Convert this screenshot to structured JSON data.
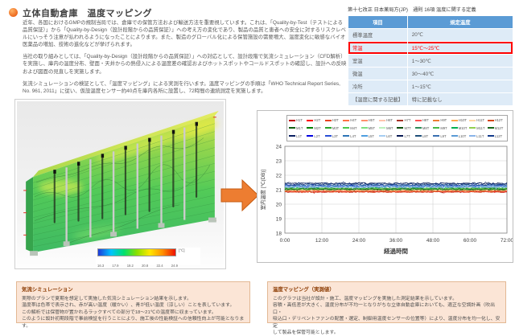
{
  "header": {
    "title": "立体自動倉庫　温度マッピング",
    "bullet_color": "#ED7D31"
  },
  "intro": {
    "p1": "近年、各国におけるGMPの規制当局では、倉庫での保管方法および輸送方法を重要視しています。これは、「Quality-by-Test（テストによる品質保証）」から「Quality-by-Design（設計段階からの品質保証）」への考え方の変化であり、製品の品質と患者への安全に対するリスクレベルにいっそう注意が払われるようになったことによります。また、製造のグローバル化による保管施設の需要増大、温度変化に敏感なバイオ医薬品の増加、技術の進化などが挙げられます。",
    "p2": "当社の取り組みとしては、「Quality-by-Design（設計段階からの品質保証）」への対応として、設計段階で気流シミュレーション（CFD解析）を実施し、庫内の温度分布、壁面・天井からの熱侵入による温度差の確認およびホットスポットやコールドスポットの確認し、設計への反映および図面の見直しを実施します。",
    "p3": "気流シミュレーションの検証として、「温度マッピング」による実測を行います。温度マッピングの手順は「WHO Technical Report Series, No. 961, 2011」に従い、仮設温度センサー約40点を庫内各所に設置し、72時間の連続測定を実施します。"
  },
  "jp_table": {
    "title": "第十七改正 日本薬局方(JP)　通則 16項 温度に関する定義",
    "columns": [
      "項目",
      "規定温度"
    ],
    "rows": [
      {
        "label": "標準温度",
        "value": "20℃",
        "highlight": false
      },
      {
        "label": "常温",
        "value": "15℃～25℃",
        "highlight": true
      },
      {
        "label": "室温",
        "value": "1～30℃",
        "highlight": false
      },
      {
        "label": "微温",
        "value": "30～40℃",
        "highlight": false
      },
      {
        "label": "冷所",
        "value": "1～15℃",
        "highlight": false
      },
      {
        "label": "【温度に関する記載】",
        "value": "特に記載なし",
        "highlight": false
      }
    ],
    "header_bg": "#5B9BD5",
    "row_bg": "#DEEBF7",
    "highlight_color": "#FF0000"
  },
  "simulation_image": {
    "colorbar": {
      "labels": [
        "16.3",
        "17.9",
        "19.2",
        "20.8",
        "22.4",
        "24.9"
      ],
      "unit": "[℃]"
    }
  },
  "arrow": {
    "color": "#ED7D31",
    "border": "#C55A11"
  },
  "chart_data": {
    "type": "line",
    "xlabel": "経過時間",
    "ylabel": "室内温度 [℃(DB)]",
    "x_ticks": [
      "0:00",
      "12:00",
      "24:00",
      "36:00",
      "48:00",
      "60:00",
      "72:00"
    ],
    "x_hours": [
      0,
      12,
      24,
      36,
      48,
      60,
      72
    ],
    "xlim_hours": [
      0,
      72
    ],
    "ylim": [
      18,
      24
    ],
    "y_ticks": [
      18,
      19,
      20,
      21,
      22,
      23,
      24
    ],
    "grid": true,
    "legend_position": "top",
    "series": [
      {
        "name": "H1T",
        "color": "#c00000",
        "mean": 20.85,
        "noise": 0.05
      },
      {
        "name": "H2T",
        "color": "#ff0000",
        "mean": 20.88,
        "noise": 0.05
      },
      {
        "name": "H3T",
        "color": "#e8431f",
        "mean": 20.9,
        "noise": 0.05
      },
      {
        "name": "H4T",
        "color": "#ff7043",
        "mean": 20.86,
        "noise": 0.05
      },
      {
        "name": "H5T",
        "color": "#ff8f6b",
        "mean": 20.92,
        "noise": 0.05
      },
      {
        "name": "H6T",
        "color": "#ffc4ad",
        "mean": 20.95,
        "noise": 0.05
      },
      {
        "name": "H7T",
        "color": "#a93226",
        "mean": 20.87,
        "noise": 0.05
      },
      {
        "name": "H8T",
        "color": "#ff5252",
        "mean": 20.9,
        "noise": 0.05
      },
      {
        "name": "H9T",
        "color": "#ed7d31",
        "mean": 20.93,
        "noise": 0.05
      },
      {
        "name": "H10T",
        "color": "#ffa94d",
        "mean": 20.96,
        "noise": 0.05
      },
      {
        "name": "H11T",
        "color": "#ffd6a5",
        "mean": 20.98,
        "noise": 0.05
      },
      {
        "name": "H12T",
        "color": "#d64518",
        "mean": 20.84,
        "noise": 0.05
      },
      {
        "name": "M1T",
        "color": "#0e5e0e",
        "mean": 21.02,
        "noise": 0.06
      },
      {
        "name": "M2T",
        "color": "#008000",
        "mean": 21.05,
        "noise": 0.06
      },
      {
        "name": "M3T",
        "color": "#2aa52a",
        "mean": 21.08,
        "noise": 0.06
      },
      {
        "name": "M4T",
        "color": "#4cc94c",
        "mean": 21.04,
        "noise": 0.06
      },
      {
        "name": "M5T",
        "color": "#80e080",
        "mean": 21.1,
        "noise": 0.06
      },
      {
        "name": "M6T",
        "color": "#bdf0bd",
        "mean": 21.07,
        "noise": 0.06
      },
      {
        "name": "M7T",
        "color": "#0b4d0b",
        "mean": 21.03,
        "noise": 0.06
      },
      {
        "name": "M8T",
        "color": "#2e8b57",
        "mean": 21.09,
        "noise": 0.06
      },
      {
        "name": "M9T",
        "color": "#46b946",
        "mean": 21.06,
        "noise": 0.06
      },
      {
        "name": "M10T",
        "color": "#00b050",
        "mean": 21.11,
        "noise": 0.06
      },
      {
        "name": "M11T",
        "color": "#92d050",
        "mean": 21.08,
        "noise": 0.06
      },
      {
        "name": "M12T",
        "color": "#176617",
        "mean": 21.05,
        "noise": 0.06
      },
      {
        "name": "L1T",
        "color": "#0b2161",
        "mean": 21.42,
        "noise": 0.07
      },
      {
        "name": "L2T",
        "color": "#0000e0",
        "mean": 21.28,
        "noise": 0.07
      },
      {
        "name": "L3T",
        "color": "#2a4fd6",
        "mean": 21.24,
        "noise": 0.07
      },
      {
        "name": "L4T",
        "color": "#2e75b6",
        "mean": 21.2,
        "noise": 0.07
      },
      {
        "name": "L5T",
        "color": "#4f9fe0",
        "mean": 21.3,
        "noise": 0.07
      },
      {
        "name": "L6T",
        "color": "#a6cdf2",
        "mean": 21.22,
        "noise": 0.07
      },
      {
        "name": "L7T",
        "color": "#071952",
        "mean": 21.44,
        "noise": 0.07
      },
      {
        "name": "L8T",
        "color": "#1f4e79",
        "mean": 21.34,
        "noise": 0.07
      },
      {
        "name": "L9T",
        "color": "#3a6fb0",
        "mean": 21.27,
        "noise": 0.07
      },
      {
        "name": "L10T",
        "color": "#5b9bd5",
        "mean": 21.21,
        "noise": 0.07
      },
      {
        "name": "L11T",
        "color": "#8ab4e8",
        "mean": 21.18,
        "noise": 0.07
      },
      {
        "name": "L12T",
        "color": "#123a8a",
        "mean": 21.38,
        "noise": 0.07
      }
    ]
  },
  "notes": {
    "left": {
      "title": "気流シミュレーション",
      "lines": [
        "実際のプランで夏期を想定して実施した気流シミュレーション結果を示します。",
        "温度帯は色帯で表示され、赤が高い温度（暖かい）、青が低い温度（涼しい）ことを表しています。",
        "この解析では保管物が置かれるラックすべての部分で18～21℃の温度帯に収まっています。",
        "このように設計初期段階で事前検証を行うことにより、施工後の性能検証への信頼性向上が可能となります。"
      ]
    },
    "right": {
      "title": "温度マッピング（実測値）",
      "lines": [
        "このグラフは当社が設計・施工、温度マッピングを実施した測定結果を示しています。",
        "容積・高低差が大きく、温度分布が不均一となりがちな立体自動倉庫においても、適正な空調計画（吹出口・",
        "吸込口・デリベントファンの配置・選定、制御用温度センサーの位置等）により、温度分布を均一化し、安定",
        "して製品を保管可能とします。"
      ]
    }
  }
}
